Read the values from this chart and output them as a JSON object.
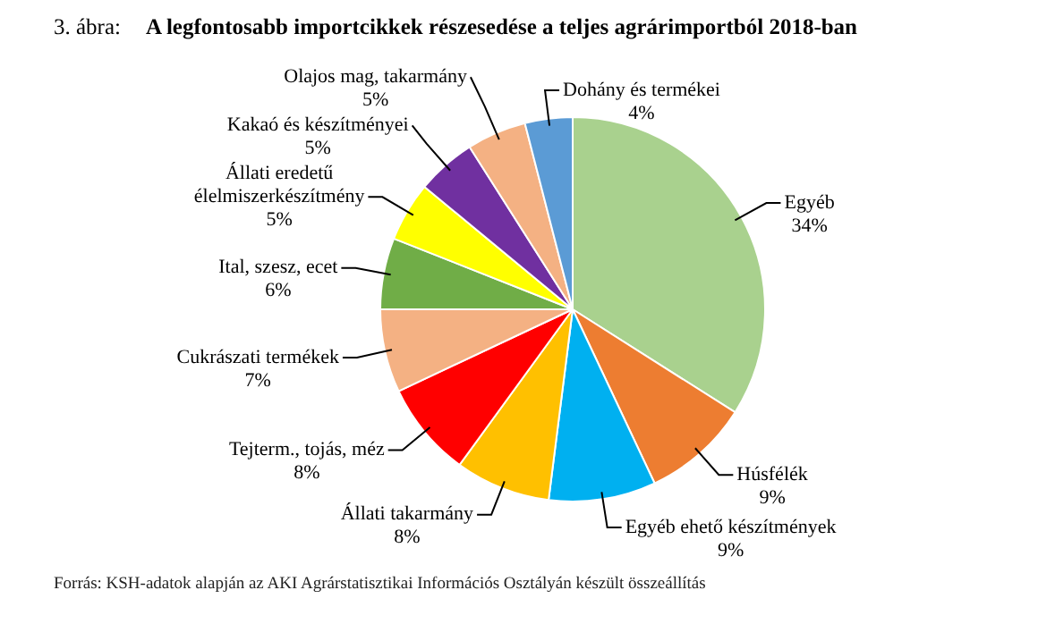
{
  "chart_data": {
    "type": "pie",
    "title": "A legfontosabb importcikkek részesedése a teljes agrárimportból 2018-ban",
    "annotations": [
      "3. ábra:",
      "Forrás: KSH-adatok alapján az AKI Agrárstatisztikai Információs Osztályán készült összeállítás"
    ],
    "categories": [
      "Egyéb",
      "Húsfélék",
      "Egyéb ehető készítmények",
      "Állati takarmány",
      "Tejterm., tojás, méz",
      "Cukrászati termékek",
      "Ital, szesz, ecet",
      "Állati eredetű élelmiszerkészítmény",
      "Kakaó és készítményei",
      "Olajos mag, takarmány",
      "Dohány és termékei"
    ],
    "values": [
      34,
      9,
      9,
      8,
      8,
      7,
      6,
      5,
      5,
      5,
      4
    ],
    "value_labels": [
      "34%",
      "9%",
      "9%",
      "8%",
      "8%",
      "7%",
      "6%",
      "5%",
      "5%",
      "5%",
      "4%"
    ],
    "colors": [
      "#a9d18e",
      "#ed7d31",
      "#00b0f0",
      "#ffc000",
      "#ff0000",
      "#f4b183",
      "#70ad47",
      "#ffff00",
      "#7030a0",
      "#f4b183",
      "#5b9bd5"
    ],
    "legend": false
  }
}
